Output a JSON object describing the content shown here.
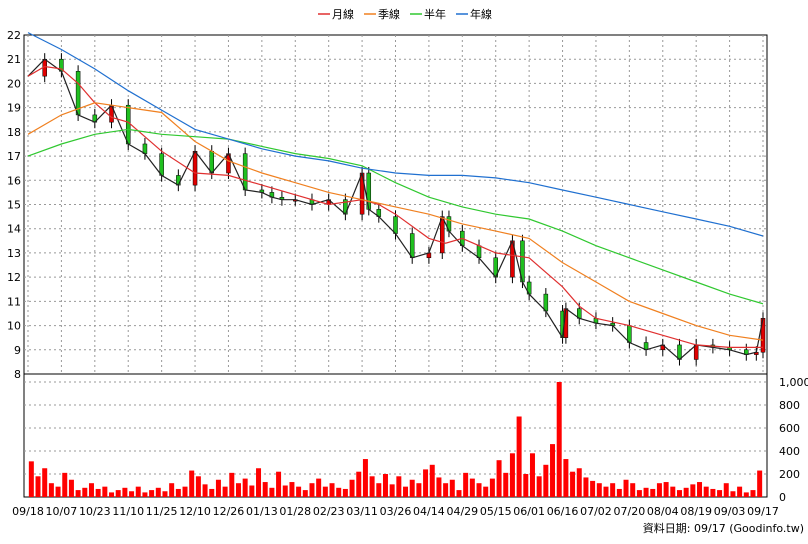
{
  "legend": {
    "placement": "top-center",
    "items": [
      {
        "label": "月線",
        "color": "#e03030"
      },
      {
        "label": "季線",
        "color": "#f08020"
      },
      {
        "label": "半年",
        "color": "#30c830"
      },
      {
        "label": "年線",
        "color": "#2070d0"
      }
    ]
  },
  "footer": {
    "source": "資料日期: 09/17 (Goodinfo.tw)"
  },
  "chart_data": [
    {
      "type": "line",
      "panel": "price",
      "ylim": [
        8,
        22
      ],
      "yticks": [
        8,
        9,
        10,
        11,
        12,
        13,
        14,
        15,
        16,
        17,
        18,
        19,
        20,
        21,
        22
      ],
      "grid": true,
      "x_categories": [
        "09/18",
        "10/07",
        "10/23",
        "11/10",
        "11/25",
        "12/10",
        "12/26",
        "01/13",
        "01/28",
        "02/23",
        "03/11",
        "03/26",
        "04/14",
        "04/29",
        "05/15",
        "06/01",
        "06/16",
        "07/02",
        "07/20",
        "08/04",
        "08/19",
        "09/03",
        "09/17"
      ],
      "price_path": {
        "name": "日K",
        "up_color": "#e00000",
        "down_color": "#20c020",
        "x": [
          0,
          0.5,
          1,
          1.5,
          2,
          2.5,
          3,
          3.5,
          4,
          4.5,
          5,
          5.5,
          6,
          6.5,
          7,
          7.3,
          7.6,
          8,
          8.5,
          9,
          9.5,
          10,
          10.2,
          10.5,
          11,
          11.5,
          12,
          12.4,
          12.6,
          13,
          13.5,
          14,
          14.5,
          14.8,
          15,
          15.5,
          16,
          16.1,
          16.5,
          17,
          17.5,
          18,
          18.5,
          19,
          19.5,
          20,
          20.5,
          21,
          21.5,
          21.8,
          22
        ],
        "y": [
          20.3,
          21.0,
          20.5,
          18.7,
          18.4,
          19.1,
          17.5,
          17.1,
          16.2,
          15.8,
          17.2,
          16.3,
          17.1,
          15.6,
          15.5,
          15.3,
          15.2,
          15.2,
          15.0,
          15.2,
          14.6,
          16.3,
          14.8,
          14.5,
          13.8,
          12.8,
          13.0,
          14.5,
          13.9,
          13.3,
          12.8,
          12.0,
          13.5,
          11.8,
          11.3,
          10.6,
          9.5,
          10.7,
          10.3,
          10.1,
          10.0,
          9.3,
          9.0,
          9.2,
          8.6,
          9.2,
          9.1,
          9.0,
          8.8,
          8.9,
          10.3
        ]
      },
      "series": [
        {
          "name": "月線",
          "color": "#e03030",
          "x": [
            0,
            0.5,
            1,
            1.5,
            2,
            2.5,
            3,
            3.5,
            4,
            5,
            6,
            7,
            8,
            9,
            10,
            10.5,
            11,
            12,
            12.5,
            13,
            14,
            15,
            15.5,
            16,
            16.5,
            17,
            18,
            19,
            20,
            21,
            22
          ],
          "y": [
            20.3,
            20.7,
            20.6,
            20.0,
            19.2,
            18.6,
            18.4,
            17.8,
            17.2,
            16.3,
            16.2,
            15.8,
            15.4,
            15.0,
            15.2,
            15.0,
            14.6,
            13.6,
            13.4,
            13.6,
            13.0,
            12.8,
            12.2,
            11.6,
            10.8,
            10.3,
            10.0,
            9.6,
            9.2,
            9.1,
            9.1
          ]
        },
        {
          "name": "季線",
          "color": "#f08020",
          "x": [
            0,
            1,
            2,
            3,
            4,
            5,
            6,
            7,
            8,
            9,
            10,
            11,
            12,
            13,
            14,
            15,
            16,
            17,
            18,
            19,
            20,
            21,
            22
          ],
          "y": [
            17.9,
            18.7,
            19.2,
            19.0,
            18.8,
            17.6,
            16.8,
            16.3,
            15.9,
            15.5,
            15.2,
            14.9,
            14.6,
            14.2,
            13.9,
            13.6,
            12.6,
            11.8,
            11.0,
            10.5,
            10.0,
            9.6,
            9.4
          ]
        },
        {
          "name": "半年",
          "color": "#30c830",
          "x": [
            0,
            1,
            2,
            3,
            4,
            5,
            6,
            7,
            8,
            9,
            10,
            11,
            12,
            13,
            14,
            15,
            16,
            17,
            18,
            19,
            20,
            21,
            22
          ],
          "y": [
            17.0,
            17.5,
            17.9,
            18.1,
            17.9,
            17.8,
            17.7,
            17.4,
            17.1,
            16.9,
            16.6,
            15.9,
            15.3,
            14.9,
            14.6,
            14.4,
            13.9,
            13.3,
            12.8,
            12.3,
            11.8,
            11.3,
            10.9
          ]
        },
        {
          "name": "年線",
          "color": "#2070d0",
          "x": [
            0,
            1,
            2,
            3,
            4,
            5,
            6,
            7,
            8,
            9,
            10,
            11,
            12,
            13,
            14,
            15,
            16,
            17,
            18,
            19,
            20,
            21,
            22
          ],
          "y": [
            22.1,
            21.4,
            20.6,
            19.7,
            18.9,
            18.1,
            17.7,
            17.3,
            17.0,
            16.8,
            16.5,
            16.3,
            16.2,
            16.2,
            16.1,
            15.9,
            15.6,
            15.3,
            15.0,
            14.7,
            14.4,
            14.1,
            13.7
          ]
        }
      ]
    },
    {
      "type": "bar",
      "panel": "volume",
      "color": "#ff0000",
      "ylim": [
        0,
        1000
      ],
      "yticks": [
        0,
        200,
        400,
        600,
        800,
        1000
      ],
      "ytick_labels": [
        "0",
        "200",
        "400",
        "600",
        "800",
        "1,000"
      ],
      "grid": true,
      "x": [
        0.1,
        0.3,
        0.5,
        0.7,
        0.9,
        1.1,
        1.3,
        1.5,
        1.7,
        1.9,
        2.1,
        2.3,
        2.5,
        2.7,
        2.9,
        3.1,
        3.3,
        3.5,
        3.7,
        3.9,
        4.1,
        4.3,
        4.5,
        4.7,
        4.9,
        5.1,
        5.3,
        5.5,
        5.7,
        5.9,
        6.1,
        6.3,
        6.5,
        6.7,
        6.9,
        7.1,
        7.3,
        7.5,
        7.7,
        7.9,
        8.1,
        8.3,
        8.5,
        8.7,
        8.9,
        9.1,
        9.3,
        9.5,
        9.7,
        9.9,
        10.1,
        10.3,
        10.5,
        10.7,
        10.9,
        11.1,
        11.3,
        11.5,
        11.7,
        11.9,
        12.1,
        12.3,
        12.5,
        12.7,
        12.9,
        13.1,
        13.3,
        13.5,
        13.7,
        13.9,
        14.1,
        14.3,
        14.5,
        14.7,
        14.9,
        15.1,
        15.3,
        15.5,
        15.7,
        15.9,
        16.1,
        16.3,
        16.5,
        16.7,
        16.9,
        17.1,
        17.3,
        17.5,
        17.7,
        17.9,
        18.1,
        18.3,
        18.5,
        18.7,
        18.9,
        19.1,
        19.3,
        19.5,
        19.7,
        19.9,
        20.1,
        20.3,
        20.5,
        20.7,
        20.9,
        21.1,
        21.3,
        21.5,
        21.7,
        21.9
      ],
      "values": [
        310,
        180,
        250,
        120,
        90,
        210,
        150,
        60,
        80,
        120,
        70,
        90,
        40,
        60,
        80,
        50,
        90,
        40,
        60,
        80,
        50,
        120,
        70,
        90,
        230,
        180,
        110,
        70,
        150,
        90,
        210,
        120,
        160,
        100,
        250,
        130,
        80,
        220,
        100,
        130,
        90,
        60,
        120,
        160,
        90,
        120,
        80,
        70,
        150,
        220,
        330,
        180,
        120,
        200,
        110,
        180,
        90,
        150,
        120,
        240,
        280,
        170,
        120,
        150,
        60,
        210,
        160,
        120,
        90,
        160,
        320,
        210,
        380,
        700,
        200,
        380,
        180,
        280,
        460,
        1000,
        330,
        220,
        250,
        170,
        140,
        120,
        90,
        120,
        70,
        150,
        120,
        60,
        80,
        70,
        120,
        130,
        90,
        60,
        80,
        110,
        130,
        90,
        70,
        60,
        120,
        50,
        90,
        40,
        60,
        230
      ]
    }
  ]
}
